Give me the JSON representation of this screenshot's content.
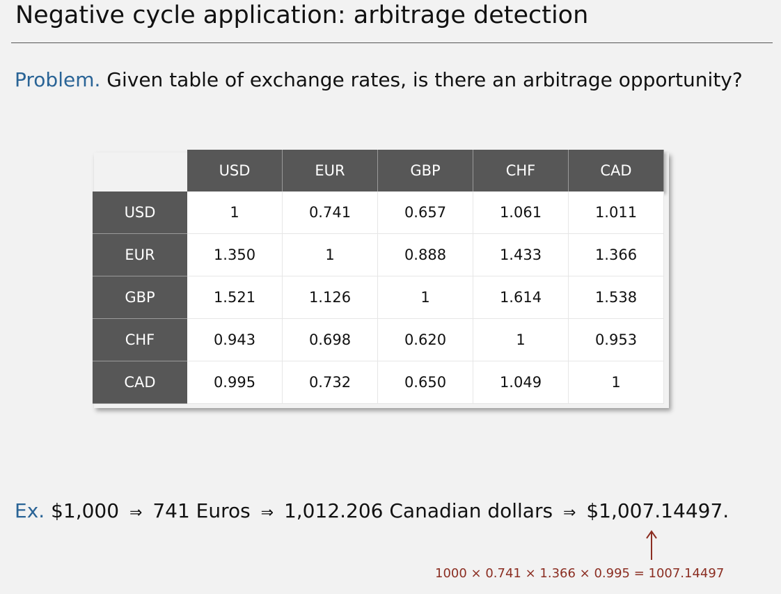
{
  "slide": {
    "title": "Negative cycle application:  arbitrage detection"
  },
  "problem": {
    "label": "Problem.",
    "text": "Given table of exchange rates, is there an arbitrage opportunity?"
  },
  "table": {
    "columns": [
      "USD",
      "EUR",
      "GBP",
      "CHF",
      "CAD"
    ],
    "rows": [
      {
        "label": "USD",
        "values": [
          "1",
          "0.741",
          "0.657",
          "1.061",
          "1.011"
        ]
      },
      {
        "label": "EUR",
        "values": [
          "1.350",
          "1",
          "0.888",
          "1.433",
          "1.366"
        ]
      },
      {
        "label": "GBP",
        "values": [
          "1.521",
          "1.126",
          "1",
          "1.614",
          "1.538"
        ]
      },
      {
        "label": "CHF",
        "values": [
          "0.943",
          "0.698",
          "0.620",
          "1",
          "0.953"
        ]
      },
      {
        "label": "CAD",
        "values": [
          "0.995",
          "0.732",
          "0.650",
          "1.049",
          "1"
        ]
      }
    ]
  },
  "example": {
    "label": "Ex.",
    "step1": "$1,000",
    "step2": "741 Euros",
    "step3": "1,012.206 Canadian dollars",
    "step4": "$1,007.14497.",
    "arrow": "⇒"
  },
  "calculation": {
    "text": "1000 × 0.741 × 1.366 × 0.995 = 1007.14497"
  },
  "colors": {
    "accent": "#2a6496",
    "header_bg": "#575757",
    "calc_text": "#8b2e22"
  }
}
